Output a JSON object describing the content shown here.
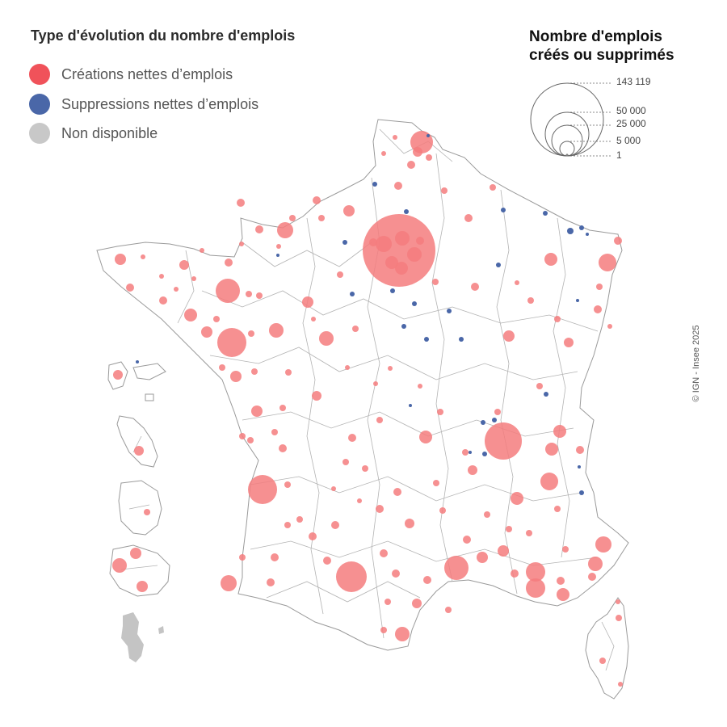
{
  "legend": {
    "title": "Type d'évolution du nombre d'emplois",
    "items": [
      {
        "label": "Créations nettes d’emplois",
        "color": "#f0525a"
      },
      {
        "label": "Suppressions nettes d’emplois",
        "color": "#4a67a8"
      },
      {
        "label": "Non disponible",
        "color": "#c4c4c4"
      }
    ]
  },
  "size_legend": {
    "title_line1": "Nombre d'emplois",
    "title_line2": "créés ou supprimés",
    "values": [
      "143 119",
      "50 000",
      "25 000",
      "5 000",
      "1"
    ]
  },
  "credit": "© IGN - Insee 2025",
  "colors": {
    "creation_fill": "#f47c7e",
    "suppression_fill": "#4a67a8",
    "unavailable_fill": "#c4c4c4",
    "border": "#9a9a9a"
  }
}
